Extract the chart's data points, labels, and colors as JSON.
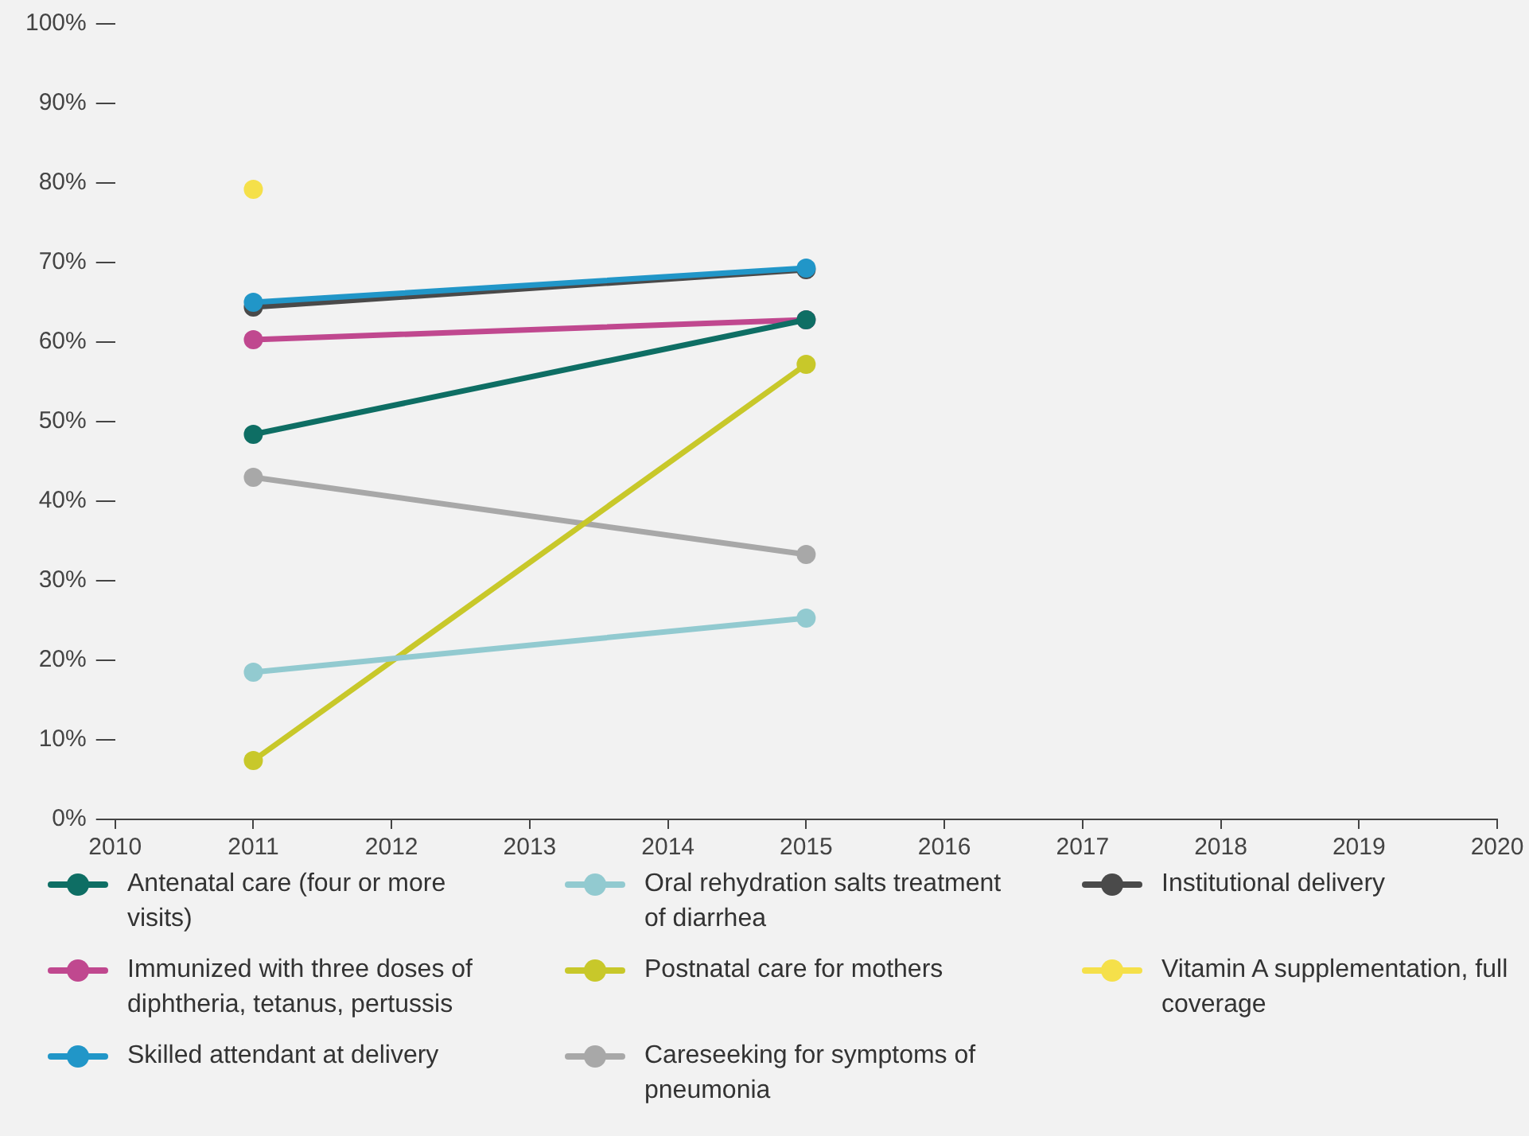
{
  "chart_data": {
    "type": "line",
    "marker": "circle",
    "line_style": "solid",
    "legend": "bottom",
    "grid": false,
    "x": [
      2011,
      2015
    ],
    "xlim": [
      2010,
      2020
    ],
    "xticks": [
      2010,
      2011,
      2012,
      2013,
      2014,
      2015,
      2016,
      2017,
      2018,
      2019,
      2020
    ],
    "ylim": [
      0,
      100
    ],
    "yticks": [
      {
        "value": 0,
        "label": "0%"
      },
      {
        "value": 10,
        "label": "10%"
      },
      {
        "value": 20,
        "label": "20%"
      },
      {
        "value": 30,
        "label": "30%"
      },
      {
        "value": 40,
        "label": "40%"
      },
      {
        "value": 50,
        "label": "50%"
      },
      {
        "value": 60,
        "label": "60%"
      },
      {
        "value": 70,
        "label": "70%"
      },
      {
        "value": 80,
        "label": "80%"
      },
      {
        "value": 90,
        "label": "90%"
      },
      {
        "value": 100,
        "label": "100%"
      }
    ],
    "series": [
      {
        "name": "Antenatal care (four or more visits)",
        "color": "#0e6e64",
        "values": [
          48.4,
          62.8
        ]
      },
      {
        "name": "Immunized with three doses of diphtheria, tetanus, pertussis",
        "color": "#c0488f",
        "values": [
          60.3,
          62.8
        ]
      },
      {
        "name": "Skilled attendant at delivery",
        "color": "#2196c8",
        "values": [
          65.0,
          69.3
        ]
      },
      {
        "name": "Oral rehydration salts treatment of diarrhea",
        "color": "#92cad0",
        "values": [
          18.5,
          25.3
        ]
      },
      {
        "name": "Postnatal care for mothers",
        "color": "#c8c82a",
        "values": [
          7.4,
          57.2
        ]
      },
      {
        "name": "Careseeking for symptoms of pneumonia",
        "color": "#a8a8a8",
        "values": [
          43.0,
          33.3
        ]
      },
      {
        "name": "Institutional delivery",
        "color": "#4a4a4a",
        "values": [
          64.4,
          69.1
        ]
      },
      {
        "name": "Vitamin A supplementation, full coverage",
        "color": "#f5e04a",
        "values": [
          79.2,
          null
        ]
      }
    ]
  }
}
